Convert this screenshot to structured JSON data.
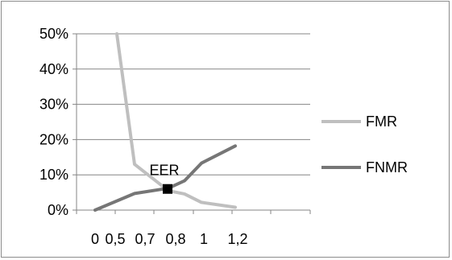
{
  "chart_data": {
    "type": "line",
    "title": "",
    "xlabel": "",
    "ylabel": "",
    "categories": [
      "0",
      "0,5",
      "0,7",
      "0,8",
      "1",
      "1,2"
    ],
    "y_tick_labels": [
      "0%",
      "10%",
      "20%",
      "30%",
      "40%",
      "50%"
    ],
    "y_ticks": [
      0,
      10,
      20,
      30,
      40,
      50
    ],
    "ylim": [
      0,
      50
    ],
    "grid": true,
    "legend_position": "right",
    "colors": {
      "FMR": "#bfbfbf",
      "FNMR": "#767676",
      "marker": "#000000",
      "grid": "#858585",
      "frame": "#8c8c8c"
    },
    "series": [
      {
        "name": "FMR",
        "x": [
          0.5,
          0.5,
          0.7,
          0.8,
          1,
          1.2
        ],
        "values": [
          50,
          13,
          5.5,
          4.6,
          2.2,
          0.8
        ]
      },
      {
        "name": "FNMR",
        "x": [
          0,
          0.5,
          0.7,
          0.8,
          1,
          1.2
        ],
        "values": [
          0,
          4.7,
          6.2,
          8.3,
          13.3,
          18.2
        ]
      }
    ],
    "x_positions_note": "",
    "annotations": [
      {
        "label": "EER",
        "x": 0.7,
        "y": 6
      }
    ]
  }
}
